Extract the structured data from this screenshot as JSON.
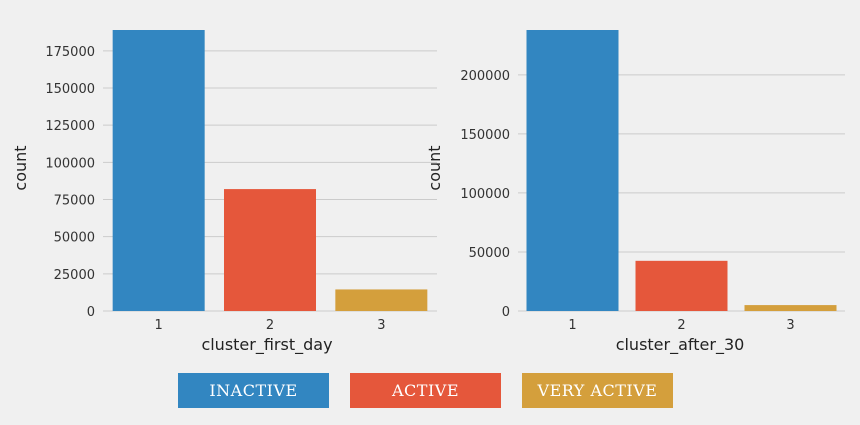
{
  "colors": {
    "background": "#f0f0f0",
    "grid": "#cbcbcb",
    "series": [
      "#3286c1",
      "#e5573b",
      "#d49f3c"
    ]
  },
  "legend": [
    {
      "label": "INACTIVE",
      "color": "#3286c1"
    },
    {
      "label": "ACTIVE",
      "color": "#e5573b"
    },
    {
      "label": "VERY ACTIVE",
      "color": "#d49f3c"
    }
  ],
  "chart_data": [
    {
      "type": "bar",
      "categories": [
        "1",
        "2",
        "3"
      ],
      "values": [
        189000,
        82000,
        14500
      ],
      "xlabel": "cluster_first_day",
      "ylabel": "count",
      "ylim": [
        0,
        189000
      ],
      "yticks": [
        0,
        25000,
        50000,
        75000,
        100000,
        125000,
        150000,
        175000
      ],
      "grid": true
    },
    {
      "type": "bar",
      "categories": [
        "1",
        "2",
        "3"
      ],
      "values": [
        238000,
        42500,
        5000
      ],
      "xlabel": "cluster_after_30",
      "ylabel": "count",
      "ylim": [
        0,
        238000
      ],
      "yticks": [
        0,
        50000,
        100000,
        150000,
        200000
      ],
      "grid": true
    }
  ]
}
